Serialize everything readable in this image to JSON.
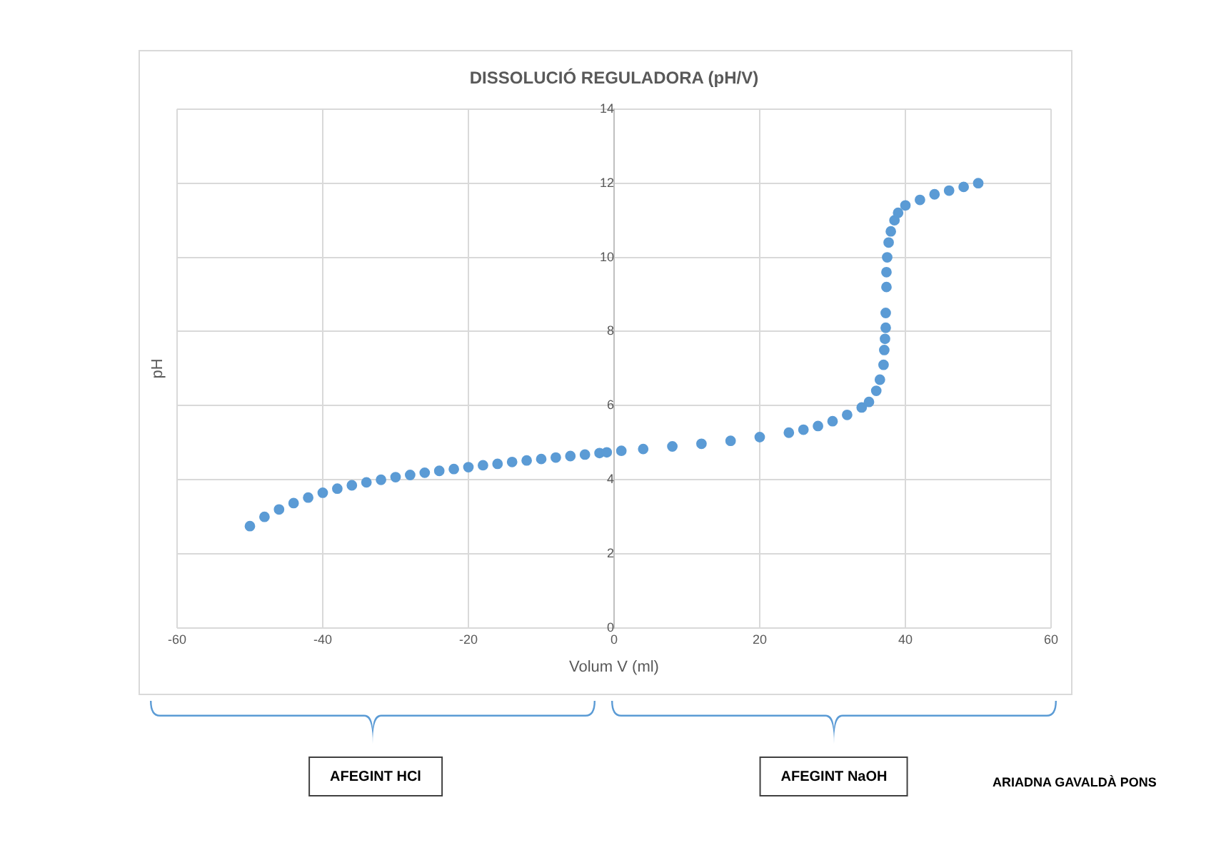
{
  "chart_data": {
    "type": "scatter",
    "title": "DISSOLUCIÓ REGULADORA (pH/V)",
    "xlabel": "Volum V (ml)",
    "ylabel": "pH",
    "series": [
      {
        "color": "#5b9bd5",
        "x": [
          -50,
          -48,
          -46,
          -44,
          -42,
          -40,
          -38,
          -36,
          -34,
          -32,
          -30,
          -28,
          -26,
          -24,
          -22,
          -20,
          -18,
          -16,
          -14,
          -12,
          -10,
          -8,
          -6,
          -4,
          -2,
          -1,
          1,
          4,
          8,
          12,
          16,
          20,
          24,
          26,
          28,
          30,
          32,
          34,
          35,
          36,
          36.5,
          37,
          37.1,
          37.2,
          37.3,
          37.3,
          37.4,
          37.4,
          37.5,
          37.7,
          38,
          38.5,
          39,
          40,
          42,
          44,
          46,
          48,
          50
        ],
        "values": [
          2.75,
          3.0,
          3.2,
          3.37,
          3.52,
          3.65,
          3.76,
          3.85,
          3.93,
          4.0,
          4.07,
          4.13,
          4.19,
          4.24,
          4.29,
          4.34,
          4.39,
          4.43,
          4.48,
          4.52,
          4.56,
          4.6,
          4.64,
          4.68,
          4.72,
          4.74,
          4.78,
          4.83,
          4.9,
          4.97,
          5.05,
          5.15,
          5.27,
          5.35,
          5.45,
          5.58,
          5.75,
          5.95,
          6.1,
          6.4,
          6.7,
          7.1,
          7.5,
          7.8,
          8.1,
          8.5,
          9.2,
          9.6,
          10.0,
          10.4,
          10.7,
          11.0,
          11.2,
          11.4,
          11.55,
          11.7,
          11.8,
          11.9,
          12.0
        ]
      }
    ],
    "xlim": [
      -60,
      60
    ],
    "xticks": [
      -60,
      -40,
      -20,
      0,
      20,
      40,
      60
    ],
    "ylim": [
      0,
      14
    ],
    "yticks": [
      0,
      2,
      4,
      6,
      8,
      10,
      12,
      14
    ],
    "grid": true,
    "legend": false,
    "marker": "circle",
    "annotations": [
      "AFEGINT HCl",
      "AFEGINT NaOH",
      "ARIADNA GAVALDÀ PONS"
    ]
  }
}
